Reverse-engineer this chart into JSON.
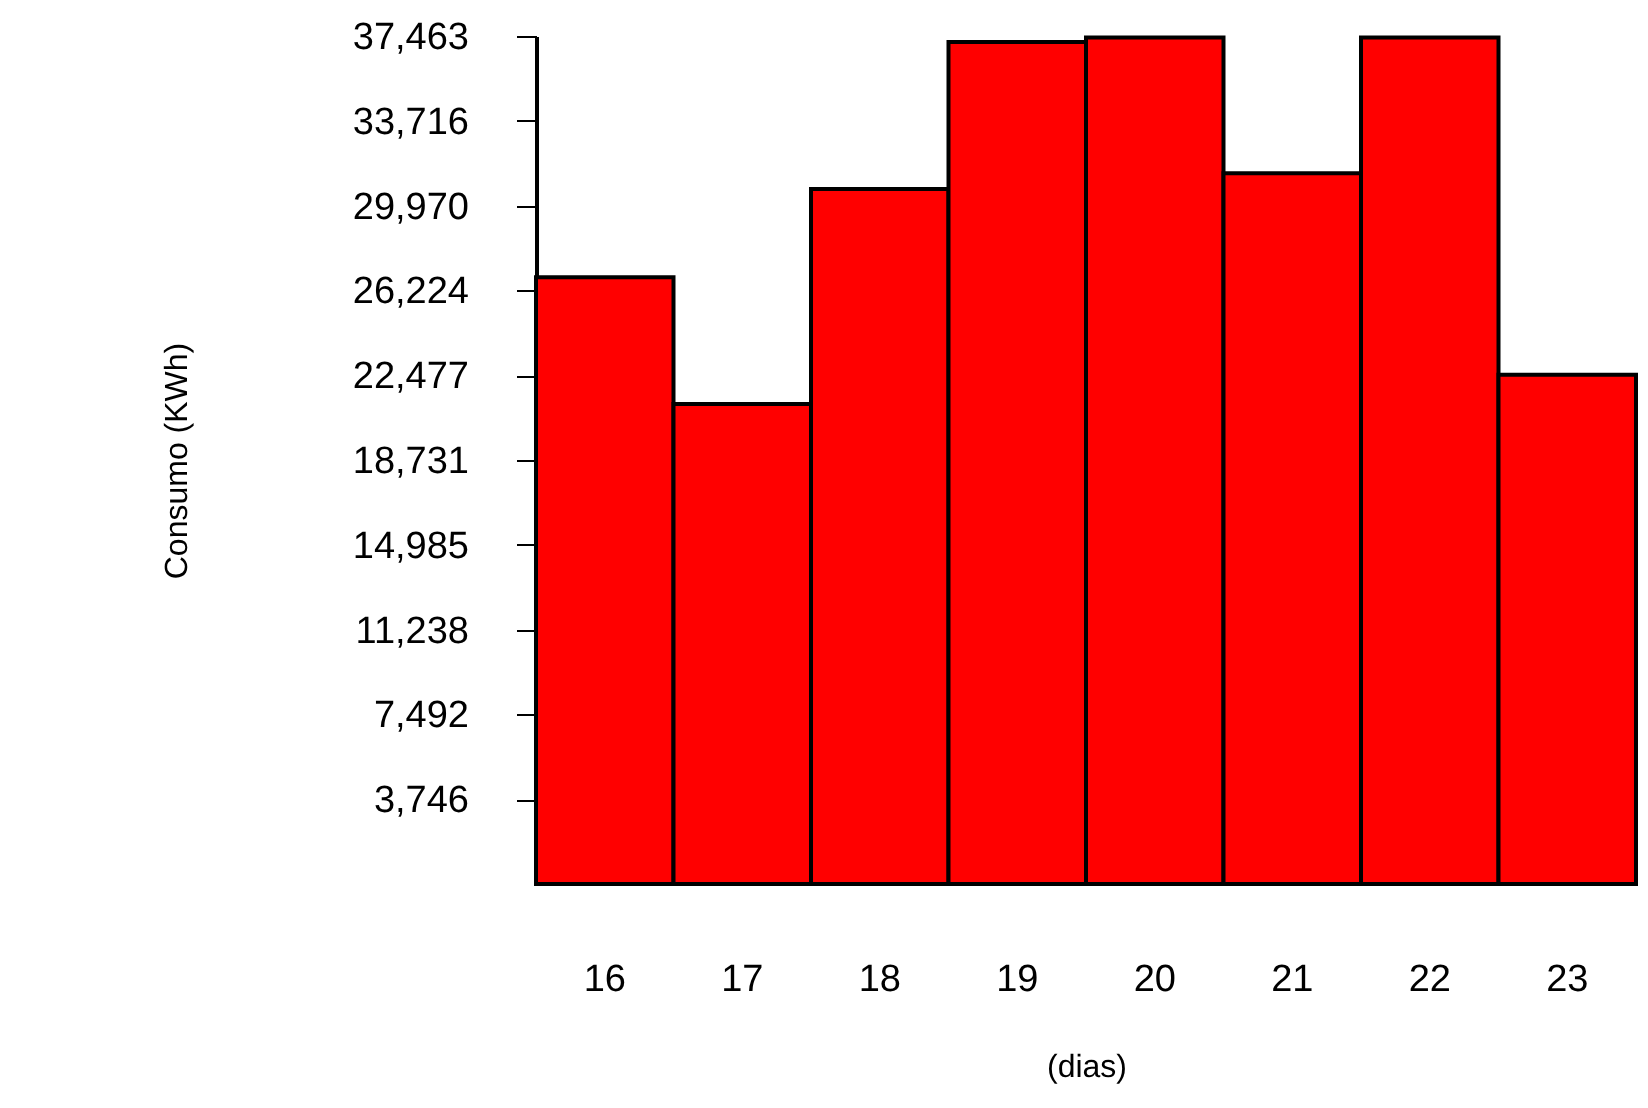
{
  "chart_data": {
    "type": "bar",
    "xlabel": "(dias)",
    "ylabel": "Consumo (KWh)",
    "categories": [
      "16",
      "17",
      "18",
      "19",
      "20",
      "21",
      "22",
      "23"
    ],
    "values": [
      26800,
      21200,
      30700,
      37200,
      37400,
      31400,
      37400,
      22500
    ],
    "color": "#ff0000",
    "ylim": [
      0,
      37463
    ],
    "yticks": [
      {
        "value": 3746,
        "label": "3,746"
      },
      {
        "value": 7492,
        "label": "7,492"
      },
      {
        "value": 11238,
        "label": "11,238"
      },
      {
        "value": 14985,
        "label": "14,985"
      },
      {
        "value": 18731,
        "label": "18,731"
      },
      {
        "value": 22477,
        "label": "22,477"
      },
      {
        "value": 26224,
        "label": "26,224"
      },
      {
        "value": 29970,
        "label": "29,970"
      },
      {
        "value": 33716,
        "label": "33,716"
      },
      {
        "value": 37463,
        "label": "37,463"
      }
    ],
    "grid": false
  }
}
